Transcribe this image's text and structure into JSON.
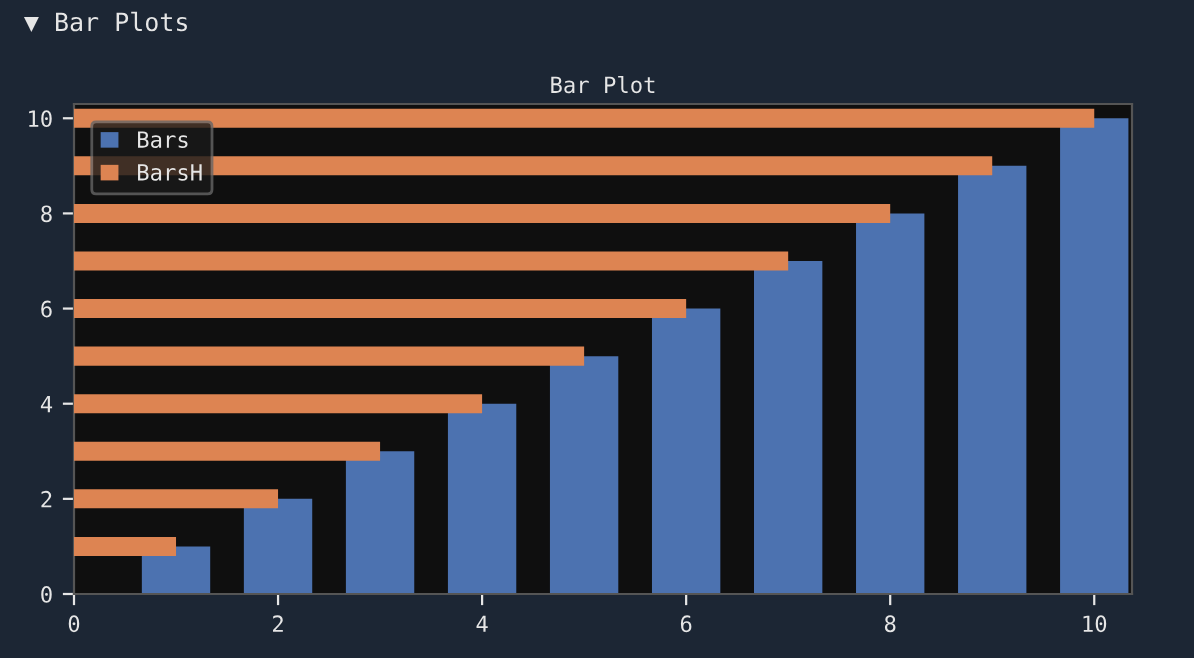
{
  "chart_data": [
    {
      "type": "bar",
      "title": "Bar Plot",
      "annotations": [
        "▼ Bar Plots"
      ],
      "series": [
        {
          "name": "Bars",
          "color": "#4c72b0",
          "x": [
            1,
            2,
            3,
            4,
            5,
            6,
            7,
            8,
            9,
            10
          ],
          "values": [
            1,
            2,
            3,
            4,
            5,
            6,
            7,
            8,
            9,
            10
          ]
        }
      ],
      "xlim": [
        0,
        10.37
      ],
      "ylim": [
        0,
        10.3
      ],
      "xticks": [
        0,
        2,
        4,
        6,
        8,
        10
      ],
      "yticks": [
        0,
        2,
        4,
        6,
        8,
        10
      ],
      "legend": "top left",
      "grid": false
    },
    {
      "type": "bar",
      "orientation": "horizontal",
      "series": [
        {
          "name": "BarsH",
          "color": "#dd8452",
          "x": [
            1,
            2,
            3,
            4,
            5,
            6,
            7,
            8,
            9,
            10
          ],
          "values": [
            1,
            2,
            3,
            4,
            5,
            6,
            7,
            8,
            9,
            10
          ]
        }
      ],
      "xlim": [
        0,
        10.37
      ],
      "ylim": [
        0,
        10.3
      ],
      "xticks": [
        0,
        2,
        4,
        6,
        8,
        10
      ],
      "yticks": [
        0,
        2,
        4,
        6,
        8,
        10
      ],
      "tick_labels": false,
      "legend": "top left",
      "grid": false
    }
  ]
}
